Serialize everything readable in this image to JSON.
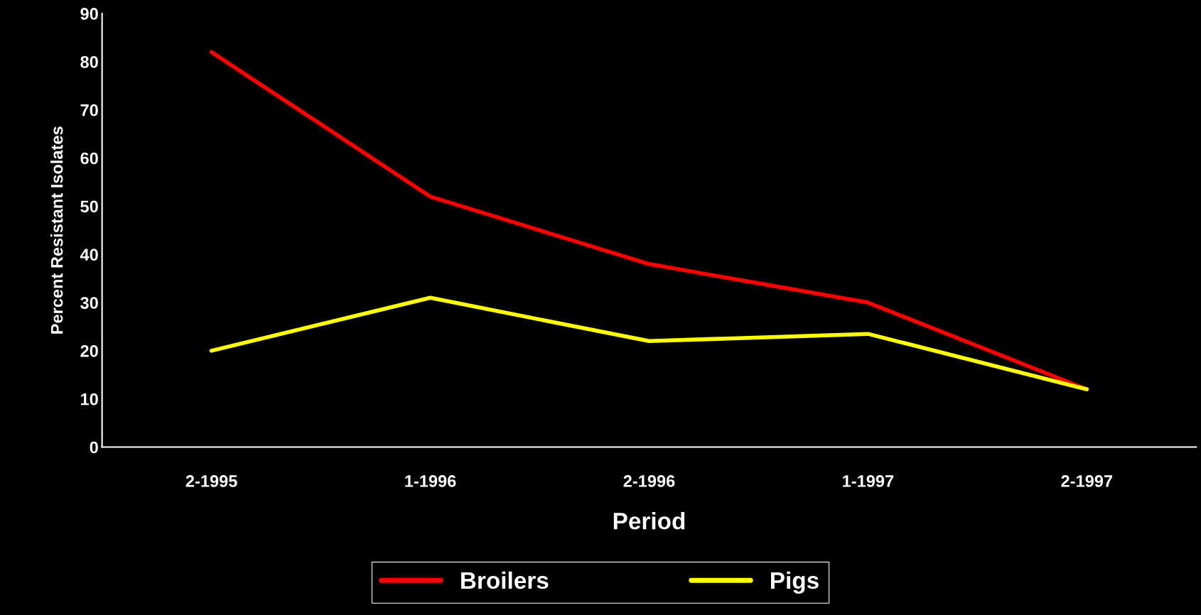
{
  "chart_data": {
    "type": "line",
    "xlabel": "Period",
    "ylabel": "Percent Resistant Isolates",
    "categories": [
      "2-1995",
      "1-1996",
      "2-1996",
      "1-1997",
      "2-1997"
    ],
    "series": [
      {
        "name": "Broilers",
        "color": "#ff0000",
        "values": [
          82,
          52,
          38,
          30,
          12
        ]
      },
      {
        "name": "Pigs",
        "color": "#ffff00",
        "values": [
          20,
          31,
          22,
          23.5,
          12
        ]
      }
    ],
    "ylim": [
      0,
      90
    ],
    "yticks": [
      0,
      10,
      20,
      30,
      40,
      50,
      60,
      70,
      80,
      90
    ],
    "grid": false,
    "legend": "bottom",
    "marker": "none",
    "line_style": "solid"
  }
}
